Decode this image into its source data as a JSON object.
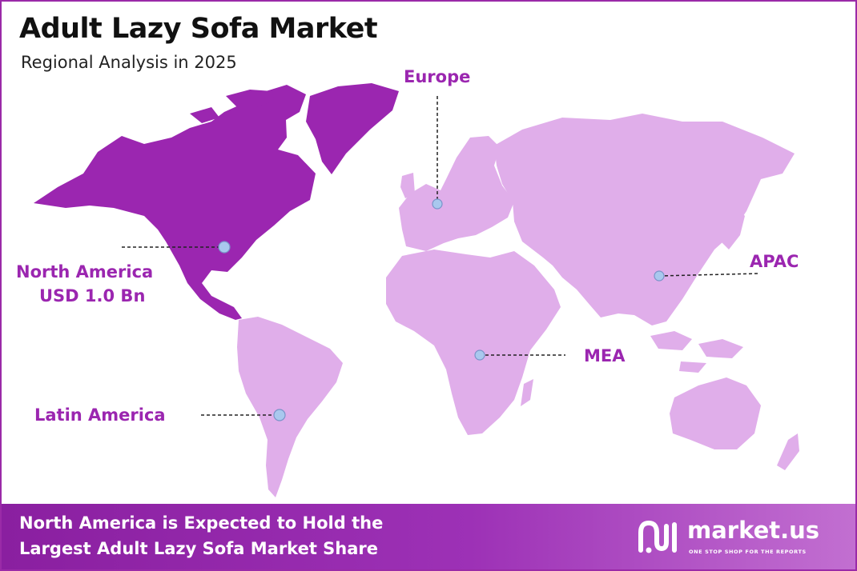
{
  "header": {
    "title": "Adult Lazy Sofa Market",
    "subtitle": "Regional Analysis in 2025"
  },
  "regions": {
    "europe": "Europe",
    "north_america": "North America",
    "north_america_value": "USD 1.0 Bn",
    "apac": "APAC",
    "mea": "MEA",
    "latin_america": "Latin America"
  },
  "footer": {
    "line1": "North America is Expected to Hold the",
    "line2": "Largest Adult Lazy Sofa Market Share",
    "brand_name": "market.us",
    "brand_tagline": "ONE STOP SHOP FOR THE REPORTS"
  },
  "colors": {
    "highlight_region": "#9b26b0",
    "other_regions": "#e0aeea",
    "marker": "#a9c8ee",
    "footer": "#8a1fa0"
  },
  "icons": [
    "market-us-logo-icon"
  ]
}
